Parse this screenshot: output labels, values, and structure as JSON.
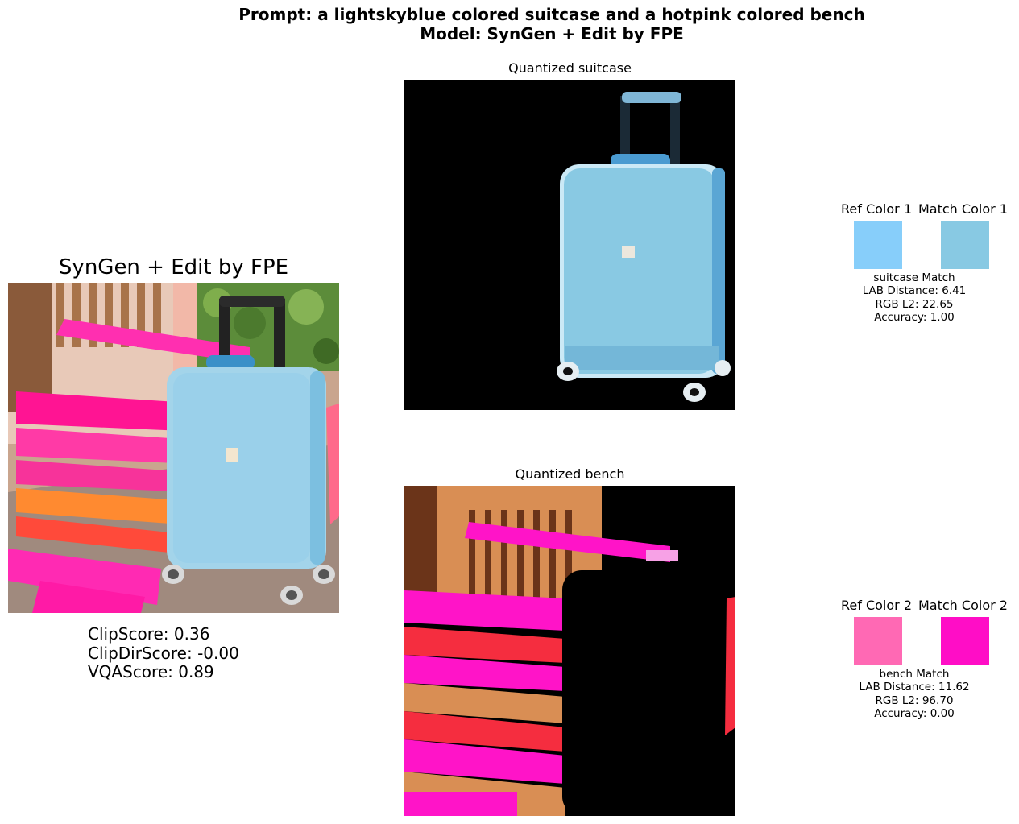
{
  "figure": {
    "title_line1": "Prompt: a lightskyblue colored suitcase and a hotpink colored bench",
    "title_line2": "Model: SynGen + Edit by FPE"
  },
  "main_panel": {
    "title": "SynGen + Edit by FPE",
    "scores": {
      "clip": "ClipScore: 0.36",
      "clipdir": "ClipDirScore: -0.00",
      "vqa": "VQAScore: 0.89"
    }
  },
  "quantized": [
    {
      "title": "Quantized suitcase"
    },
    {
      "title": "Quantized bench"
    }
  ],
  "color_matches": [
    {
      "ref_label": "Ref Color 1",
      "match_label": "Match Color 1",
      "ref_color": "#87CEFA",
      "match_color": "#88C9E3",
      "match_name": "suitcase Match",
      "lab": "LAB Distance: 6.41",
      "rgb": "RGB L2: 22.65",
      "accuracy": "Accuracy: 1.00"
    },
    {
      "ref_label": "Ref Color 2",
      "match_label": "Match Color 2",
      "ref_color": "#FF69B4",
      "match_color": "#FF0DC6",
      "match_name": "bench Match",
      "lab": "LAB Distance: 11.62",
      "rgb": "RGB L2: 96.70",
      "accuracy": "Accuracy: 0.00"
    }
  ]
}
